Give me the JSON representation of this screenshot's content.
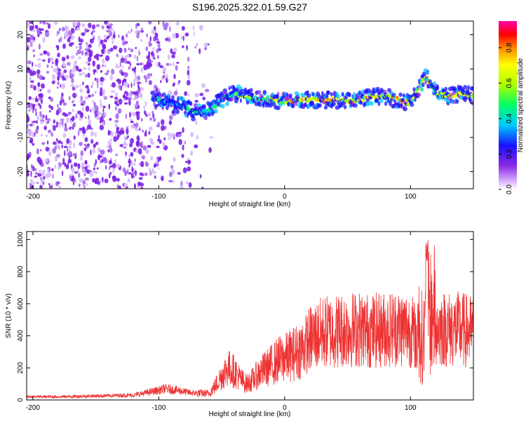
{
  "title": "S196.2025.322.01.59.G27",
  "colors": {
    "snr_line": "#ee3333",
    "axis": "#000000",
    "background": "#ffffff"
  },
  "chart_data": [
    {
      "type": "heatmap",
      "xlabel": "Height of straight line (km)",
      "ylabel": "Frequency (Hz)",
      "xlim": [
        -205,
        150
      ],
      "ylim": [
        -25,
        24
      ],
      "xticks": [
        "-200",
        "-100",
        "0",
        "100"
      ],
      "yticks": [
        "-20",
        "-10",
        "0",
        "10",
        "20"
      ],
      "colorbar": {
        "label": "Normalized spectral amplitude",
        "range": [
          0,
          0.95
        ],
        "ticks": [
          "0.0",
          "0.2",
          "0.4",
          "0.6",
          "0.8"
        ]
      },
      "ridge": {
        "x": [
          -100,
          -90,
          -80,
          -70,
          -60,
          -50,
          -40,
          -30,
          -20,
          -10,
          0,
          10,
          20,
          30,
          40,
          50,
          60,
          70,
          80,
          90,
          100,
          108,
          112,
          120,
          130,
          140,
          150
        ],
        "y": [
          1,
          0,
          -1,
          -3,
          -2,
          1,
          3,
          2,
          1,
          1,
          0.5,
          1,
          1,
          1,
          1,
          0.5,
          1,
          2,
          2,
          1,
          0,
          5,
          8,
          3,
          2,
          3,
          2
        ]
      }
    },
    {
      "type": "line",
      "xlabel": "Height of straight line (km)",
      "ylabel": "SNR (10 * v/v)",
      "xlim": [
        -205,
        150
      ],
      "ylim": [
        0,
        1050
      ],
      "xticks": [
        "-200",
        "-100",
        "0",
        "100"
      ],
      "yticks": [
        "0",
        "200",
        "400",
        "600",
        "800",
        "1000"
      ],
      "series": [
        {
          "name": "SNR",
          "x": [
            -205,
            -180,
            -150,
            -120,
            -100,
            -95,
            -85,
            -75,
            -60,
            -55,
            -50,
            -45,
            -40,
            -35,
            -30,
            -25,
            -20,
            -10,
            -5,
            0,
            5,
            10,
            15,
            20,
            30,
            40,
            50,
            60,
            70,
            80,
            90,
            100,
            105,
            110,
            115,
            120,
            130,
            140,
            150
          ],
          "y": [
            20,
            20,
            25,
            30,
            60,
            70,
            60,
            45,
            40,
            90,
            150,
            200,
            180,
            130,
            100,
            130,
            170,
            220,
            250,
            260,
            280,
            300,
            330,
            380,
            420,
            430,
            440,
            440,
            430,
            440,
            450,
            440,
            380,
            300,
            430,
            450,
            440,
            440,
            420
          ],
          "peak": 1000
        }
      ]
    }
  ]
}
